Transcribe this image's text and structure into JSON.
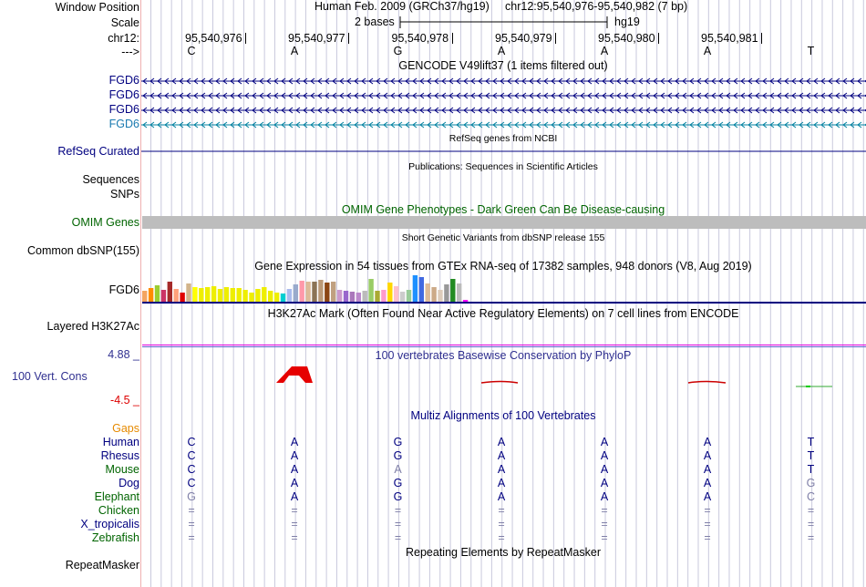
{
  "colors": {
    "label_blue": "#000080",
    "label_green": "#006400",
    "gaps_orange": "#e68a00",
    "cons_red": "#dd0000",
    "cons_blue": "#303090",
    "text_black": "#000000",
    "grid": "#c9c9dd",
    "pink_border": "#f0b0b0"
  },
  "header": {
    "window_position_label": "Window Position",
    "scale_label": "Scale",
    "chrom_label": "chr12:",
    "arrow_label": "--->",
    "assembly": "Human Feb. 2009 (GRCh37/hg19)",
    "position": "chr12:95,540,976-95,540,982 (7 bp)",
    "scale_text": "2 bases",
    "scale_db": "hg19",
    "coords": [
      "95,540,976",
      "95,540,977",
      "95,540,978",
      "95,540,979",
      "95,540,980",
      "95,540,981"
    ],
    "bases": [
      "C",
      "A",
      "G",
      "A",
      "A",
      "A",
      "T"
    ]
  },
  "gencode": {
    "title": "GENCODE V49lift37 (1 items filtered out)",
    "genes": [
      "FGD6",
      "FGD6",
      "FGD6",
      "FGD6"
    ]
  },
  "refseq": {
    "title": "RefSeq genes from NCBI",
    "label": "RefSeq Curated"
  },
  "publications": {
    "title": "Publications: Sequences in Scientific Articles",
    "labels": [
      "Sequences",
      "SNPs"
    ]
  },
  "omim": {
    "title": "OMIM Gene Phenotypes - Dark Green Can Be Disease-causing",
    "label": "OMIM Genes"
  },
  "dbsnp": {
    "title": "Short Genetic Variants from dbSNP release 155",
    "label": "Common dbSNP(155)"
  },
  "gtex": {
    "title": "Gene Expression in 54 tissues from GTEx RNA-seq of 17382 samples, 948 donors (V8, Aug 2019)",
    "label": "FGD6",
    "bars": [
      {
        "h": 12,
        "c": "#f4a460"
      },
      {
        "h": 15,
        "c": "#ff8c00"
      },
      {
        "h": 18,
        "c": "#9acd32"
      },
      {
        "h": 13,
        "c": "#cc3366"
      },
      {
        "h": 22,
        "c": "#a52a2a"
      },
      {
        "h": 14,
        "c": "#ffa07a"
      },
      {
        "h": 10,
        "c": "#e00000"
      },
      {
        "h": 20,
        "c": "#d2b48c"
      },
      {
        "h": 16,
        "c": "#ffff00"
      },
      {
        "h": 15,
        "c": "#eeee00"
      },
      {
        "h": 16,
        "c": "#eeee00"
      },
      {
        "h": 17,
        "c": "#eeee00"
      },
      {
        "h": 14,
        "c": "#eeee00"
      },
      {
        "h": 16,
        "c": "#eeee00"
      },
      {
        "h": 15,
        "c": "#eeee00"
      },
      {
        "h": 15,
        "c": "#eeee00"
      },
      {
        "h": 13,
        "c": "#eeee00"
      },
      {
        "h": 10,
        "c": "#eeee00"
      },
      {
        "h": 14,
        "c": "#eeee00"
      },
      {
        "h": 16,
        "c": "#eeee00"
      },
      {
        "h": 12,
        "c": "#eeee00"
      },
      {
        "h": 10,
        "c": "#eeee00"
      },
      {
        "h": 9,
        "c": "#00ced1"
      },
      {
        "h": 14,
        "c": "#aabbee"
      },
      {
        "h": 19,
        "c": "#99aacc"
      },
      {
        "h": 23,
        "c": "#ff99aa"
      },
      {
        "h": 22,
        "c": "#ddbb99"
      },
      {
        "h": 22,
        "c": "#8b7355"
      },
      {
        "h": 24,
        "c": "#bb9977"
      },
      {
        "h": 21,
        "c": "#8b4513"
      },
      {
        "h": 22,
        "c": "#c0a080"
      },
      {
        "h": 13,
        "c": "#cc99cc"
      },
      {
        "h": 12,
        "c": "#9966cc"
      },
      {
        "h": 11,
        "c": "#aa77bb"
      },
      {
        "h": 10,
        "c": "#bb88cc"
      },
      {
        "h": 12,
        "c": "#bbbbbb"
      },
      {
        "h": 25,
        "c": "#99cc66"
      },
      {
        "h": 12,
        "c": "#aaaa33"
      },
      {
        "h": 13,
        "c": "#ff99cc"
      },
      {
        "h": 21,
        "c": "#ffd700"
      },
      {
        "h": 17,
        "c": "#ffc0cb"
      },
      {
        "h": 11,
        "c": "#cccccc"
      },
      {
        "h": 13,
        "c": "#99cc99"
      },
      {
        "h": 29,
        "c": "#1e90ff"
      },
      {
        "h": 27,
        "c": "#4169e1"
      },
      {
        "h": 20,
        "c": "#ddbb99"
      },
      {
        "h": 16,
        "c": "#ccaa88"
      },
      {
        "h": 13,
        "c": "#ddccbb"
      },
      {
        "h": 19,
        "c": "#999999"
      },
      {
        "h": 25,
        "c": "#228b22"
      },
      {
        "h": 20,
        "c": "#bbbbbb"
      },
      {
        "h": 2,
        "c": "#ff00ff"
      }
    ]
  },
  "h3k27ac": {
    "title": "H3K27Ac Mark (Often Found Near Active Regulatory Elements) on 7 cell lines from ENCODE",
    "label": "Layered H3K27Ac"
  },
  "conservation": {
    "title": "100 vertebrates Basewise Conservation by PhyloP",
    "label": "100 Vert. Cons",
    "max": "4.88 _",
    "min": "-4.5 _"
  },
  "multiz": {
    "title": "Multiz Alignments of 100 Vertebrates",
    "gaps_label": "Gaps",
    "species": [
      {
        "name": "Human",
        "bases": [
          "C",
          "A",
          "G",
          "A",
          "A",
          "A",
          "T"
        ],
        "faded": [
          false,
          false,
          false,
          false,
          false,
          false,
          false
        ],
        "color": "#000080"
      },
      {
        "name": "Rhesus",
        "bases": [
          "C",
          "A",
          "G",
          "A",
          "A",
          "A",
          "T"
        ],
        "faded": [
          false,
          false,
          false,
          false,
          false,
          false,
          false
        ],
        "color": "#000080"
      },
      {
        "name": "Mouse",
        "bases": [
          "C",
          "A",
          "A",
          "A",
          "A",
          "A",
          "T"
        ],
        "faded": [
          false,
          false,
          true,
          false,
          false,
          false,
          false
        ],
        "color": "#006400"
      },
      {
        "name": "Dog",
        "bases": [
          "C",
          "A",
          "G",
          "A",
          "A",
          "A",
          "G"
        ],
        "faded": [
          false,
          false,
          false,
          false,
          false,
          false,
          true
        ],
        "color": "#000080"
      },
      {
        "name": "Elephant",
        "bases": [
          "G",
          "A",
          "G",
          "A",
          "A",
          "A",
          "C"
        ],
        "faded": [
          true,
          false,
          false,
          false,
          false,
          false,
          true
        ],
        "color": "#006400"
      },
      {
        "name": "Chicken",
        "bases": [
          "=",
          "=",
          "=",
          "=",
          "=",
          "=",
          "="
        ],
        "faded": [
          true,
          true,
          true,
          true,
          true,
          true,
          true
        ],
        "color": "#006400"
      },
      {
        "name": "X_tropicalis",
        "bases": [
          "=",
          "=",
          "=",
          "=",
          "=",
          "=",
          "="
        ],
        "faded": [
          true,
          true,
          true,
          true,
          true,
          true,
          true
        ],
        "color": "#000080"
      },
      {
        "name": "Zebrafish",
        "bases": [
          "=",
          "=",
          "=",
          "=",
          "=",
          "=",
          "="
        ],
        "faded": [
          true,
          true,
          true,
          true,
          true,
          true,
          true
        ],
        "color": "#006400"
      }
    ]
  },
  "repeatmasker": {
    "title": "Repeating Elements by RepeatMasker",
    "label": "RepeatMasker"
  }
}
